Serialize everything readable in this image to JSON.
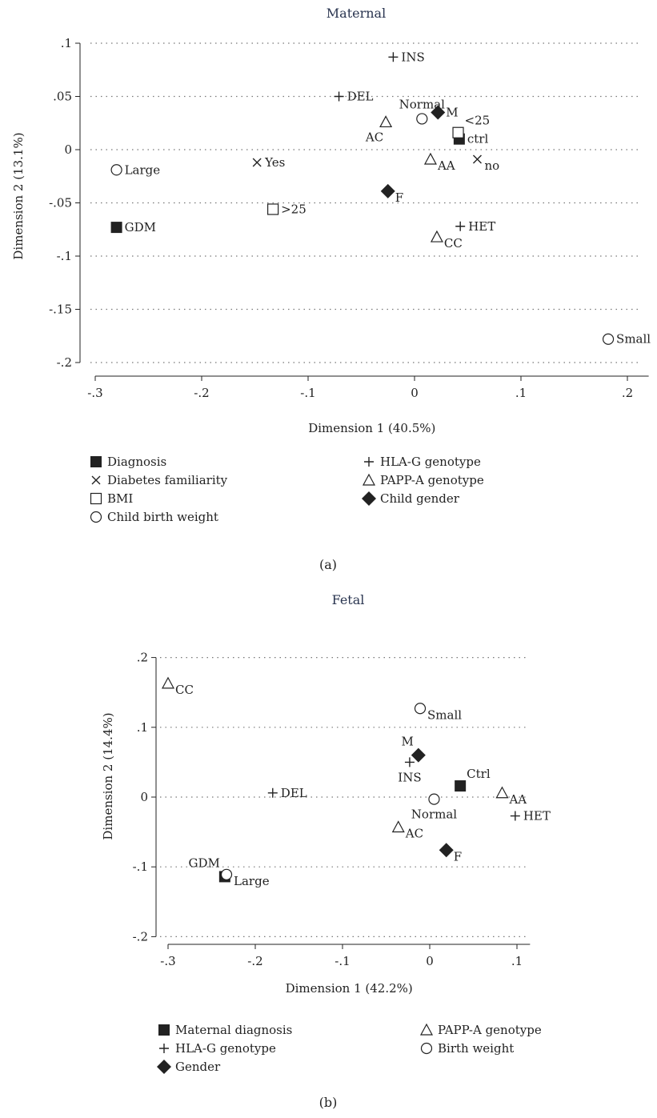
{
  "chart_data": [
    {
      "type": "scatter",
      "panel_caption": "(a)",
      "title": "Maternal",
      "xlabel": "Dimension 1 (40.5%)",
      "ylabel": "Dimension 2 (13.1%)",
      "xlim": [
        -0.3,
        0.22
      ],
      "ylim": [
        -0.21,
        0.12
      ],
      "xticks": [
        -0.3,
        -0.2,
        -0.1,
        0,
        0.1,
        0.2
      ],
      "xtick_labels": [
        "-.3",
        "-.2",
        "-.1",
        "0",
        ".1",
        ".2"
      ],
      "yticks": [
        0.1,
        0.05,
        0,
        -0.05,
        -0.1,
        -0.15,
        -0.2
      ],
      "ytick_labels": [
        ".1",
        ".05",
        "0",
        "-.05",
        "-.1",
        "-.15",
        "-.2"
      ],
      "grid": true,
      "legend_position": "bottom",
      "series": [
        {
          "name": "Diagnosis",
          "marker": "square-filled",
          "points": [
            {
              "x": -0.28,
              "y": -0.073,
              "label": "GDM",
              "pos": "right"
            },
            {
              "x": 0.042,
              "y": 0.01,
              "label": "ctrl",
              "pos": "right"
            }
          ]
        },
        {
          "name": "Diabetes familiarity",
          "marker": "cross",
          "points": [
            {
              "x": -0.148,
              "y": -0.012,
              "label": "Yes",
              "pos": "right"
            },
            {
              "x": 0.059,
              "y": -0.009,
              "label": "no",
              "pos": "right-low"
            }
          ]
        },
        {
          "name": "BMI",
          "marker": "square-open",
          "points": [
            {
              "x": 0.041,
              "y": 0.016,
              "label": "<25",
              "pos": "above-right"
            },
            {
              "x": -0.133,
              "y": -0.056,
              "label": ">25",
              "pos": "right"
            }
          ]
        },
        {
          "name": "Child birth weight",
          "marker": "circle-open",
          "points": [
            {
              "x": -0.28,
              "y": -0.019,
              "label": "Large",
              "pos": "right"
            },
            {
              "x": 0.007,
              "y": 0.029,
              "label": "Normal",
              "pos": "above"
            },
            {
              "x": 0.182,
              "y": -0.178,
              "label": "Small",
              "pos": "right"
            }
          ]
        },
        {
          "name": "HLA-G genotype",
          "marker": "plus",
          "points": [
            {
              "x": -0.02,
              "y": 0.087,
              "label": "INS",
              "pos": "right"
            },
            {
              "x": -0.071,
              "y": 0.05,
              "label": "DEL",
              "pos": "right"
            },
            {
              "x": 0.043,
              "y": -0.072,
              "label": "HET",
              "pos": "right"
            }
          ]
        },
        {
          "name": "PAPP-A genotype",
          "marker": "triangle-open",
          "points": [
            {
              "x": -0.027,
              "y": 0.026,
              "label": "AC",
              "pos": "below-left"
            },
            {
              "x": 0.015,
              "y": -0.009,
              "label": "AA",
              "pos": "right-low"
            },
            {
              "x": 0.021,
              "y": -0.082,
              "label": "CC",
              "pos": "right-low"
            }
          ]
        },
        {
          "name": "Child gender",
          "marker": "diamond-filled",
          "points": [
            {
              "x": 0.022,
              "y": 0.035,
              "label": "M",
              "pos": "right"
            },
            {
              "x": -0.025,
              "y": -0.039,
              "label": "F",
              "pos": "right-low"
            }
          ]
        }
      ],
      "legend": [
        {
          "text": "Diagnosis",
          "marker": "square-filled"
        },
        {
          "text": "Diabetes familiarity",
          "marker": "cross"
        },
        {
          "text": "BMI",
          "marker": "square-open"
        },
        {
          "text": "Child birth weight",
          "marker": "circle-open"
        },
        {
          "text": "HLA-G genotype",
          "marker": "plus"
        },
        {
          "text": "PAPP-A genotype",
          "marker": "triangle-open"
        },
        {
          "text": "Child gender",
          "marker": "diamond-filled"
        }
      ]
    },
    {
      "type": "scatter",
      "panel_caption": "(b)",
      "title": "Fetal",
      "xlabel": "Dimension 1 (42.2%)",
      "ylabel": "Dimension 2 (14.4%)",
      "xlim": [
        -0.31,
        0.115
      ],
      "ylim": [
        -0.21,
        0.215
      ],
      "xticks": [
        -0.3,
        -0.2,
        -0.1,
        0,
        0.1
      ],
      "xtick_labels": [
        "-.3",
        "-.2",
        "-.1",
        "0",
        ".1"
      ],
      "yticks": [
        0.2,
        0.1,
        0,
        -0.1,
        -0.2
      ],
      "ytick_labels": [
        ".2",
        ".1",
        "0",
        "-.1",
        "-.2"
      ],
      "grid": true,
      "legend_position": "bottom",
      "series": [
        {
          "name": "Maternal diagnosis",
          "marker": "square-filled",
          "points": [
            {
              "x": 0.035,
              "y": 0.016,
              "label": "Ctrl",
              "pos": "above-right"
            },
            {
              "x": -0.235,
              "y": -0.114,
              "label": "GDM",
              "pos": "above-left"
            }
          ]
        },
        {
          "name": "HLA-G genotype",
          "marker": "plus",
          "points": [
            {
              "x": -0.023,
              "y": 0.05,
              "label": "INS",
              "pos": "below"
            },
            {
              "x": -0.18,
              "y": 0.006,
              "label": "DEL",
              "pos": "right"
            },
            {
              "x": 0.098,
              "y": -0.027,
              "label": "HET",
              "pos": "right"
            }
          ]
        },
        {
          "name": "Gender",
          "marker": "diamond-filled",
          "points": [
            {
              "x": -0.013,
              "y": 0.06,
              "label": "M",
              "pos": "above-left"
            },
            {
              "x": 0.019,
              "y": -0.076,
              "label": "F",
              "pos": "right-low"
            }
          ]
        },
        {
          "name": "PAPP-A genotype",
          "marker": "triangle-open",
          "points": [
            {
              "x": -0.3,
              "y": 0.163,
              "label": "CC",
              "pos": "right-low"
            },
            {
              "x": 0.083,
              "y": 0.006,
              "label": "AA",
              "pos": "right-low"
            },
            {
              "x": -0.036,
              "y": -0.043,
              "label": "AC",
              "pos": "right-low"
            }
          ]
        },
        {
          "name": "Birth weight",
          "marker": "circle-open",
          "points": [
            {
              "x": -0.011,
              "y": 0.127,
              "label": "Small",
              "pos": "right-low"
            },
            {
              "x": 0.005,
              "y": -0.003,
              "label": "Normal",
              "pos": "below"
            },
            {
              "x": -0.233,
              "y": -0.111,
              "label": "Large",
              "pos": "right-low"
            }
          ]
        }
      ],
      "legend": [
        {
          "text": "Maternal diagnosis",
          "marker": "square-filled"
        },
        {
          "text": "HLA-G genotype",
          "marker": "plus"
        },
        {
          "text": "Gender",
          "marker": "diamond-filled"
        },
        {
          "text": "PAPP-A genotype",
          "marker": "triangle-open"
        },
        {
          "text": "Birth weight",
          "marker": "circle-open"
        }
      ]
    }
  ]
}
